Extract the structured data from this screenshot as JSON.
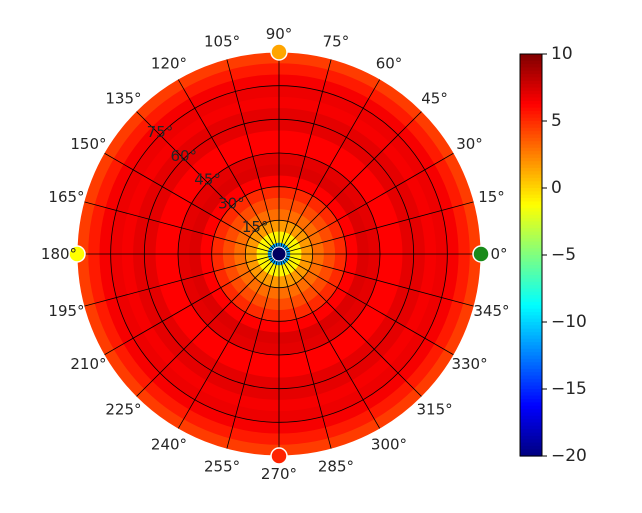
{
  "chart_data": {
    "type": "heatmap",
    "subtype": "polar",
    "title": "",
    "angle_ticks_deg": [
      0,
      15,
      30,
      45,
      60,
      75,
      90,
      105,
      120,
      135,
      150,
      165,
      180,
      195,
      210,
      225,
      240,
      255,
      270,
      285,
      300,
      315,
      330,
      345
    ],
    "angle_tick_labels": [
      "0°",
      "15°",
      "30°",
      "45°",
      "60°",
      "75°",
      "90°",
      "105°",
      "120°",
      "135°",
      "150°",
      "165°",
      "180°",
      "195°",
      "210°",
      "225°",
      "240°",
      "255°",
      "270°",
      "285°",
      "300°",
      "315°",
      "330°",
      "345°"
    ],
    "radial_ticks": [
      15,
      30,
      45,
      60,
      75
    ],
    "radial_tick_labels": [
      "15°",
      "30°",
      "45°",
      "60°",
      "75°"
    ],
    "radial_range": [
      0,
      90
    ],
    "radial_label_angle_deg": 135,
    "grid": true,
    "colorbar": {
      "min": -20,
      "max": 10,
      "ticks": [
        10,
        5,
        0,
        -5,
        -10,
        -15,
        -20
      ],
      "tick_labels": [
        "10",
        "5",
        "0",
        "−5",
        "−10",
        "−15",
        "−20"
      ],
      "colormap": "jet"
    },
    "field_profile": {
      "radius_deg": [
        0,
        5,
        10,
        15,
        20,
        25,
        30,
        35,
        40,
        45,
        50,
        55,
        60,
        65,
        70,
        75,
        80,
        85,
        90
      ],
      "value": [
        -20,
        -3,
        1,
        2.5,
        3.5,
        4.5,
        5.5,
        7,
        7.5,
        6.5,
        6,
        6.5,
        7.5,
        6.5,
        6.5,
        7,
        6,
        5,
        4
      ]
    },
    "markers": [
      {
        "angle_deg": 0,
        "value": -7,
        "color": "#1a8a1a"
      },
      {
        "angle_deg": 90,
        "value": 3,
        "color": "#ffa500"
      },
      {
        "angle_deg": 180,
        "value": 0,
        "color": "#ffff00"
      },
      {
        "angle_deg": 270,
        "value": 8,
        "color": "#ff2200"
      }
    ],
    "colors": {
      "grid": "#000000",
      "center_marker": "#000060"
    }
  }
}
